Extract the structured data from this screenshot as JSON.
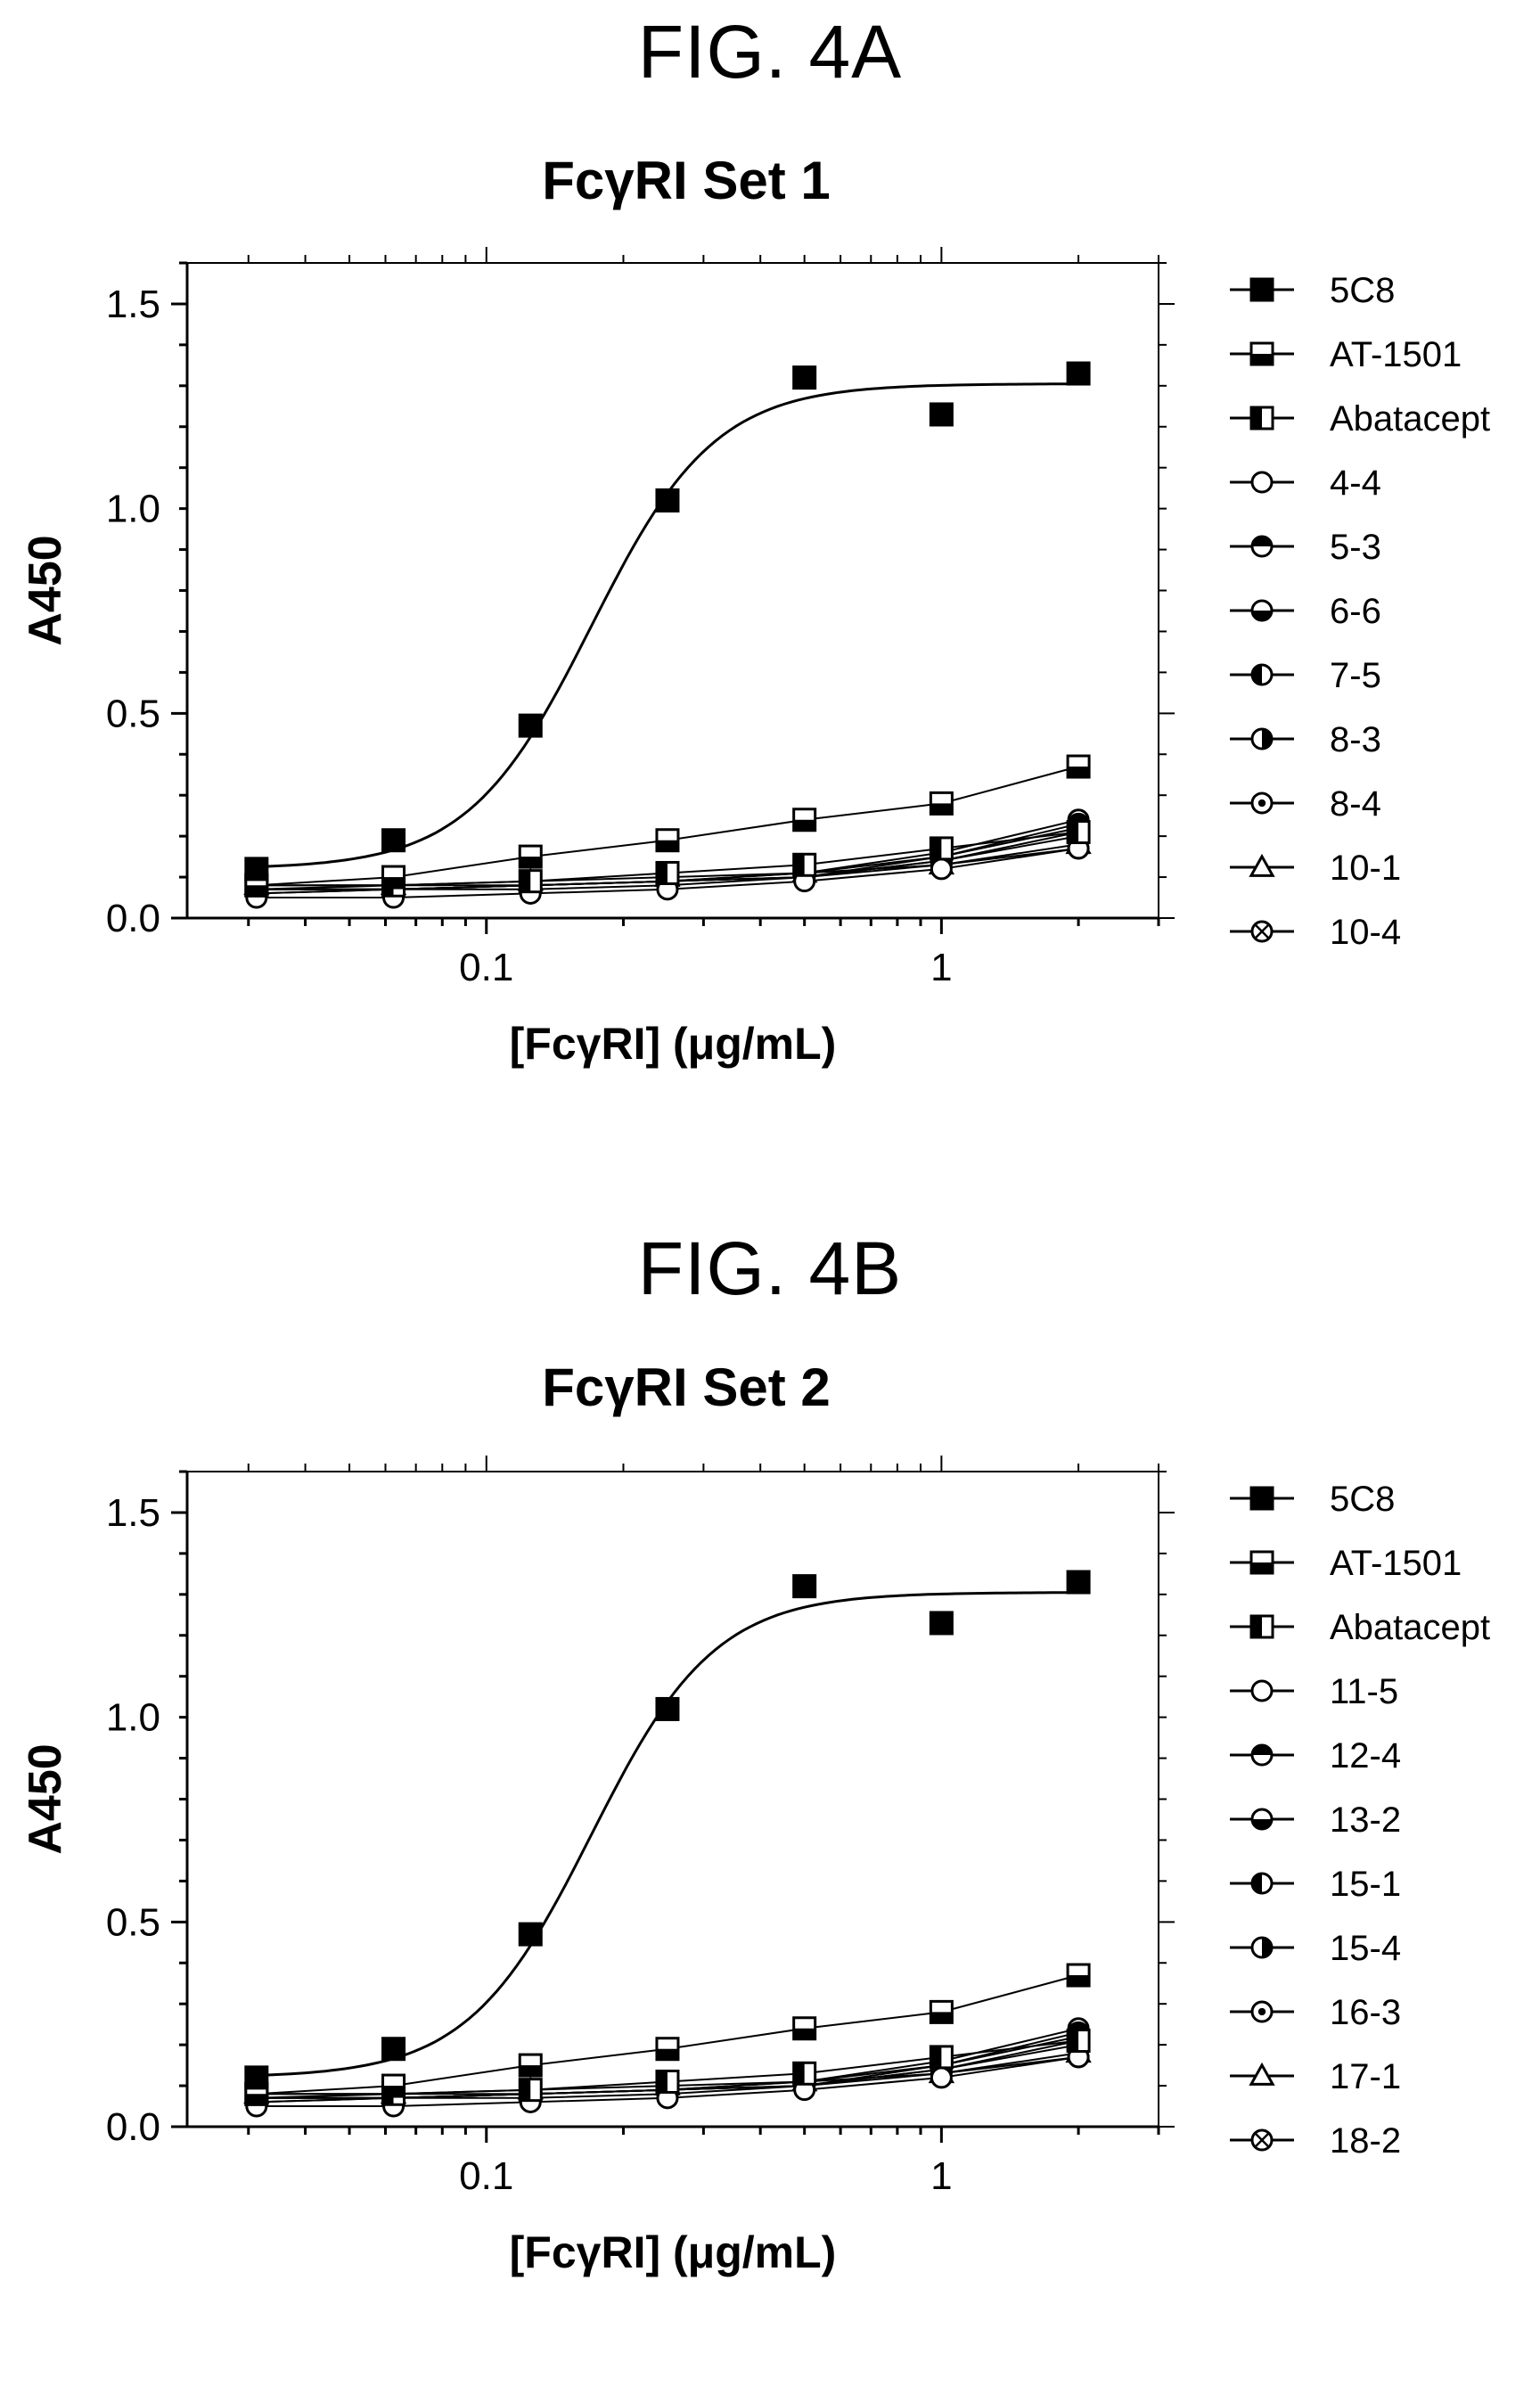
{
  "figures": [
    {
      "label": "FIG. 4A",
      "title": "FcγRI Set 1"
    },
    {
      "label": "FIG. 4B",
      "title": "FcγRI Set 2"
    }
  ],
  "chart_data": [
    {
      "type": "scatter",
      "title": "FcγRI Set 1",
      "xlabel": "[FcγRI] (μg/mL)",
      "ylabel": "A450",
      "xscale": "log",
      "xlim": [
        0.022,
        3.0
      ],
      "ylim": [
        0.0,
        1.6
      ],
      "xticks": [
        {
          "value": 0.1,
          "label": "0.1"
        },
        {
          "value": 1,
          "label": "1"
        }
      ],
      "yticks": [
        {
          "value": 0.0,
          "label": "0.0"
        },
        {
          "value": 0.5,
          "label": "0.5"
        },
        {
          "value": 1.0,
          "label": "1.0"
        },
        {
          "value": 1.5,
          "label": "1.5"
        }
      ],
      "grid": false,
      "legend_position": "right",
      "x": [
        0.03125,
        0.0625,
        0.125,
        0.25,
        0.5,
        1,
        2
      ],
      "series": [
        {
          "name": "5C8",
          "marker": "square-filled",
          "values": [
            0.12,
            0.19,
            0.47,
            1.02,
            1.32,
            1.23,
            1.33
          ],
          "fit": "sigmoid"
        },
        {
          "name": "AT-1501",
          "marker": "square-half-bottom",
          "values": [
            0.08,
            0.1,
            0.15,
            0.19,
            0.24,
            0.28,
            0.37
          ]
        },
        {
          "name": "Abatacept",
          "marker": "square-half-left",
          "values": [
            0.08,
            0.08,
            0.09,
            0.11,
            0.13,
            0.17,
            0.21
          ]
        },
        {
          "name": "4-4",
          "marker": "circle-open",
          "values": [
            0.05,
            0.05,
            0.06,
            0.07,
            0.09,
            0.12,
            0.17
          ]
        },
        {
          "name": "5-3",
          "marker": "circle-half-top",
          "values": [
            0.06,
            0.07,
            0.07,
            0.08,
            0.1,
            0.15,
            0.23
          ]
        },
        {
          "name": "6-6",
          "marker": "circle-half-bottom",
          "values": [
            0.07,
            0.07,
            0.08,
            0.09,
            0.11,
            0.16,
            0.24
          ]
        },
        {
          "name": "7-5",
          "marker": "circle-half-left",
          "values": [
            0.07,
            0.07,
            0.08,
            0.09,
            0.11,
            0.15,
            0.22
          ]
        },
        {
          "name": "8-3",
          "marker": "circle-half-right",
          "values": [
            0.06,
            0.07,
            0.08,
            0.09,
            0.1,
            0.14,
            0.21
          ]
        },
        {
          "name": "8-4",
          "marker": "circle-dot",
          "values": [
            0.07,
            0.07,
            0.08,
            0.09,
            0.1,
            0.14,
            0.2
          ]
        },
        {
          "name": "10-1",
          "marker": "triangle-open",
          "values": [
            0.08,
            0.08,
            0.09,
            0.1,
            0.11,
            0.13,
            0.18
          ]
        },
        {
          "name": "10-4",
          "marker": "circle-x",
          "values": [
            0.07,
            0.08,
            0.08,
            0.09,
            0.1,
            0.13,
            0.17
          ]
        }
      ]
    },
    {
      "type": "scatter",
      "title": "FcγRI Set 2",
      "xlabel": "[FcγRI] (μg/mL)",
      "ylabel": "A450",
      "xscale": "log",
      "xlim": [
        0.022,
        3.0
      ],
      "ylim": [
        0.0,
        1.6
      ],
      "xticks": [
        {
          "value": 0.1,
          "label": "0.1"
        },
        {
          "value": 1,
          "label": "1"
        }
      ],
      "yticks": [
        {
          "value": 0.0,
          "label": "0.0"
        },
        {
          "value": 0.5,
          "label": "0.5"
        },
        {
          "value": 1.0,
          "label": "1.0"
        },
        {
          "value": 1.5,
          "label": "1.5"
        }
      ],
      "grid": false,
      "legend_position": "right",
      "x": [
        0.03125,
        0.0625,
        0.125,
        0.25,
        0.5,
        1,
        2
      ],
      "series": [
        {
          "name": "5C8",
          "marker": "square-filled",
          "values": [
            0.12,
            0.19,
            0.47,
            1.02,
            1.32,
            1.23,
            1.33
          ],
          "fit": "sigmoid"
        },
        {
          "name": "AT-1501",
          "marker": "square-half-bottom",
          "values": [
            0.08,
            0.1,
            0.15,
            0.19,
            0.24,
            0.28,
            0.37
          ]
        },
        {
          "name": "Abatacept",
          "marker": "square-half-left",
          "values": [
            0.08,
            0.08,
            0.09,
            0.11,
            0.13,
            0.17,
            0.21
          ]
        },
        {
          "name": "11-5",
          "marker": "circle-open",
          "values": [
            0.05,
            0.05,
            0.06,
            0.07,
            0.09,
            0.12,
            0.17
          ]
        },
        {
          "name": "12-4",
          "marker": "circle-half-top",
          "values": [
            0.06,
            0.07,
            0.07,
            0.08,
            0.1,
            0.15,
            0.23
          ]
        },
        {
          "name": "13-2",
          "marker": "circle-half-bottom",
          "values": [
            0.07,
            0.07,
            0.08,
            0.09,
            0.11,
            0.16,
            0.24
          ]
        },
        {
          "name": "15-1",
          "marker": "circle-half-left",
          "values": [
            0.07,
            0.07,
            0.08,
            0.09,
            0.11,
            0.15,
            0.22
          ]
        },
        {
          "name": "15-4",
          "marker": "circle-half-right",
          "values": [
            0.06,
            0.07,
            0.08,
            0.09,
            0.1,
            0.14,
            0.21
          ]
        },
        {
          "name": "16-3",
          "marker": "circle-dot",
          "values": [
            0.07,
            0.07,
            0.08,
            0.09,
            0.1,
            0.14,
            0.2
          ]
        },
        {
          "name": "17-1",
          "marker": "triangle-open",
          "values": [
            0.08,
            0.08,
            0.09,
            0.1,
            0.11,
            0.13,
            0.18
          ]
        },
        {
          "name": "18-2",
          "marker": "circle-x",
          "values": [
            0.07,
            0.08,
            0.08,
            0.09,
            0.1,
            0.13,
            0.17
          ]
        }
      ]
    }
  ]
}
